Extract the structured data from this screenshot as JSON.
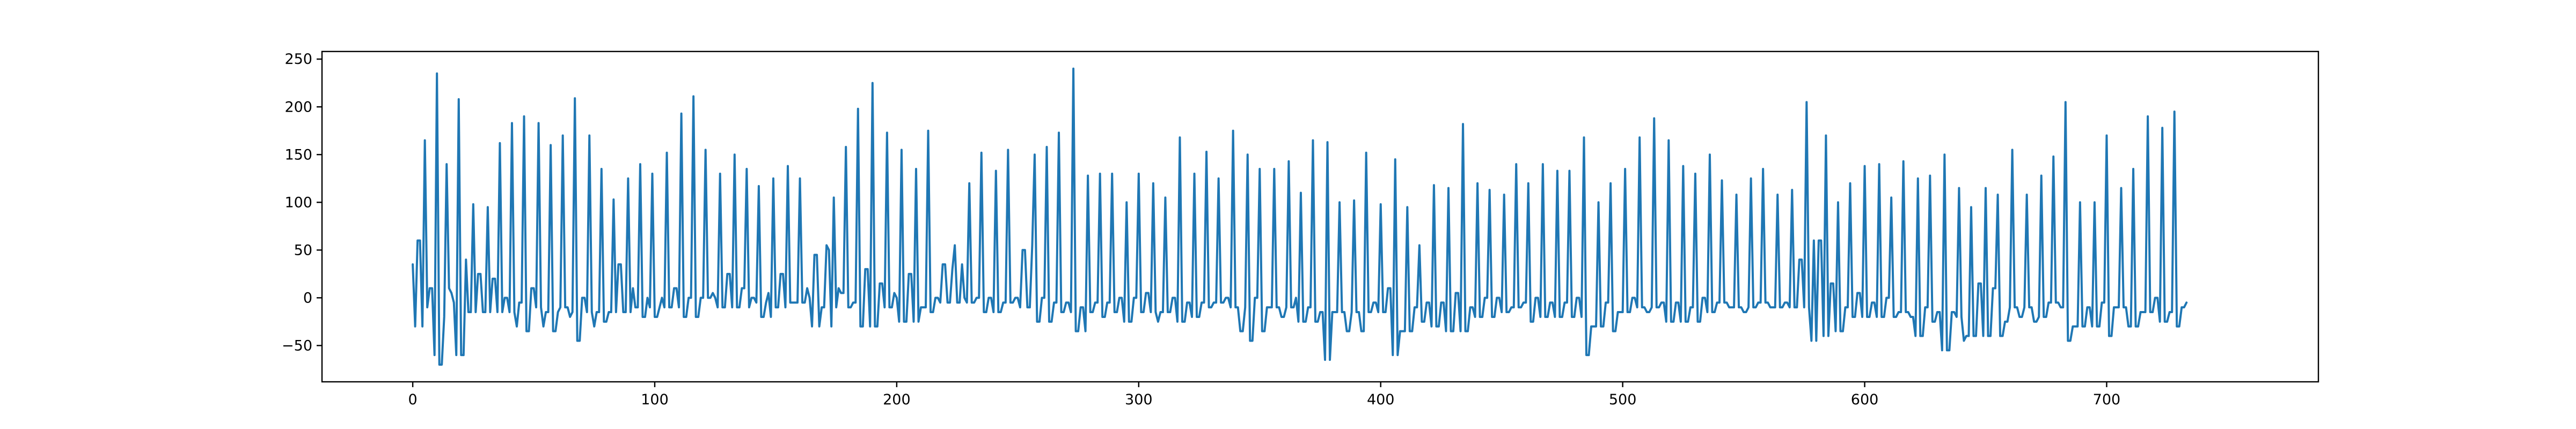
{
  "chart_data": {
    "type": "line",
    "title": "",
    "xlabel": "",
    "ylabel": "",
    "xlim": [
      -37.5,
      787.5
    ],
    "ylim": [
      -88,
      258
    ],
    "x_ticks": [
      0,
      100,
      200,
      300,
      400,
      500,
      600,
      700
    ],
    "x_tick_labels": [
      "0",
      "100",
      "200",
      "300",
      "400",
      "500",
      "600",
      "700"
    ],
    "y_ticks": [
      -50,
      0,
      50,
      100,
      150,
      200,
      250
    ],
    "y_tick_labels": [
      "−50",
      "0",
      "50",
      "100",
      "150",
      "200",
      "250"
    ],
    "grid": false,
    "legend": "none",
    "colors": {
      "line": "#1f77b4",
      "axes": "#000000",
      "background": "#ffffff"
    },
    "series": [
      {
        "x_start": 0,
        "x_step": 1,
        "values": [
          35,
          -30,
          60,
          60,
          -30,
          165,
          -10,
          10,
          10,
          -60,
          235,
          -70,
          -70,
          -20,
          140,
          10,
          5,
          -5,
          -60,
          208,
          -60,
          -60,
          40,
          -15,
          -15,
          98,
          -15,
          25,
          25,
          -15,
          -15,
          95,
          -15,
          20,
          20,
          -15,
          162,
          -15,
          0,
          0,
          -15,
          183,
          -15,
          -30,
          -5,
          -5,
          190,
          -35,
          -35,
          10,
          10,
          -10,
          183,
          -10,
          -30,
          -15,
          -15,
          160,
          -35,
          -35,
          -15,
          -10,
          170,
          -10,
          -10,
          -20,
          -15,
          209,
          -45,
          -45,
          0,
          0,
          -15,
          170,
          -15,
          -30,
          -15,
          -15,
          135,
          -25,
          -25,
          -15,
          -15,
          103,
          -15,
          35,
          35,
          -15,
          -15,
          125,
          -15,
          10,
          -10,
          -10,
          140,
          -20,
          -20,
          0,
          -10,
          130,
          -20,
          -20,
          -10,
          0,
          -10,
          152,
          -10,
          -10,
          10,
          10,
          -10,
          193,
          -20,
          -20,
          0,
          0,
          211,
          -20,
          -20,
          0,
          0,
          155,
          0,
          0,
          5,
          0,
          -10,
          130,
          -10,
          -10,
          25,
          25,
          -10,
          150,
          -10,
          -10,
          10,
          10,
          135,
          -10,
          0,
          0,
          -5,
          117,
          -20,
          -20,
          -5,
          5,
          -20,
          125,
          -10,
          -10,
          25,
          25,
          -10,
          138,
          -5,
          -5,
          -5,
          -5,
          125,
          -5,
          -5,
          10,
          0,
          -30,
          45,
          45,
          -30,
          -10,
          -10,
          55,
          50,
          -30,
          105,
          -10,
          10,
          5,
          5,
          158,
          -10,
          -10,
          -5,
          -5,
          198,
          -30,
          -30,
          30,
          30,
          -30,
          225,
          -30,
          -30,
          15,
          15,
          -10,
          173,
          -10,
          -10,
          5,
          0,
          -25,
          155,
          -25,
          -25,
          25,
          25,
          -25,
          135,
          -25,
          -10,
          -10,
          -10,
          175,
          -15,
          -15,
          0,
          0,
          -5,
          35,
          35,
          -5,
          -5,
          30,
          55,
          -5,
          -5,
          35,
          0,
          -5,
          120,
          -5,
          -5,
          0,
          0,
          152,
          -15,
          -15,
          0,
          0,
          -15,
          133,
          -15,
          -15,
          -5,
          -5,
          155,
          -5,
          -5,
          0,
          0,
          -10,
          50,
          50,
          -10,
          -10,
          55,
          150,
          -25,
          -25,
          0,
          0,
          158,
          -25,
          -25,
          -5,
          -5,
          173,
          -15,
          -15,
          -5,
          -5,
          -15,
          240,
          -35,
          -35,
          -10,
          -10,
          -35,
          128,
          -15,
          -15,
          -5,
          -5,
          130,
          -20,
          -20,
          -5,
          -5,
          130,
          -15,
          -15,
          0,
          0,
          -25,
          100,
          -25,
          -25,
          0,
          0,
          130,
          -15,
          -15,
          5,
          5,
          -15,
          120,
          -15,
          -25,
          -15,
          -15,
          105,
          -15,
          -15,
          0,
          0,
          -25,
          168,
          -25,
          -25,
          -5,
          -5,
          -20,
          130,
          -20,
          -20,
          -5,
          -5,
          153,
          -10,
          -10,
          -5,
          -5,
          125,
          -5,
          -5,
          0,
          0,
          -10,
          175,
          -10,
          -10,
          -35,
          -35,
          -10,
          150,
          -45,
          -45,
          0,
          0,
          135,
          -35,
          -35,
          -10,
          -10,
          -10,
          135,
          -10,
          -10,
          -20,
          -20,
          -10,
          143,
          -10,
          -10,
          0,
          -25,
          110,
          -25,
          -25,
          -10,
          -10,
          165,
          -25,
          -25,
          -15,
          -15,
          -65,
          163,
          -65,
          -15,
          -15,
          -15,
          100,
          -15,
          -15,
          -35,
          -35,
          -15,
          102,
          -15,
          -15,
          -35,
          -35,
          152,
          -15,
          -15,
          -5,
          -5,
          -15,
          98,
          -15,
          -15,
          10,
          10,
          -60,
          145,
          -60,
          -35,
          -35,
          -35,
          95,
          -35,
          -35,
          -10,
          -10,
          55,
          -25,
          -25,
          -5,
          -5,
          -30,
          118,
          -30,
          -30,
          -5,
          -5,
          -35,
          115,
          -35,
          -35,
          5,
          5,
          -35,
          182,
          -35,
          -35,
          -10,
          -10,
          -20,
          120,
          -20,
          -20,
          0,
          0,
          113,
          -20,
          -20,
          0,
          0,
          -15,
          108,
          -15,
          -15,
          -10,
          -10,
          140,
          -10,
          -10,
          -5,
          -5,
          120,
          -25,
          -25,
          0,
          0,
          -20,
          140,
          -20,
          -20,
          -5,
          -5,
          -20,
          133,
          -20,
          -20,
          -5,
          -5,
          133,
          -20,
          -20,
          0,
          0,
          -20,
          168,
          -60,
          -60,
          -30,
          -30,
          -30,
          100,
          -30,
          -30,
          -5,
          -5,
          120,
          -35,
          -35,
          -15,
          -15,
          -15,
          135,
          -15,
          -15,
          0,
          0,
          -10,
          168,
          -10,
          -10,
          -15,
          -15,
          -10,
          188,
          -10,
          -10,
          -5,
          -5,
          -25,
          165,
          -25,
          -25,
          -5,
          -5,
          -25,
          138,
          -25,
          -25,
          -10,
          -10,
          130,
          -25,
          -25,
          0,
          0,
          -15,
          150,
          -15,
          -15,
          -5,
          -5,
          123,
          -5,
          -5,
          -10,
          -10,
          -10,
          108,
          -10,
          -10,
          -15,
          -15,
          -10,
          125,
          -10,
          -10,
          -5,
          -5,
          135,
          -5,
          -5,
          -10,
          -10,
          -10,
          108,
          -10,
          -10,
          -5,
          -5,
          -10,
          113,
          -10,
          -10,
          40,
          40,
          -10,
          205,
          -10,
          -45,
          60,
          -45,
          60,
          60,
          -40,
          170,
          -40,
          15,
          15,
          -35,
          100,
          -35,
          -35,
          -10,
          -10,
          120,
          -20,
          -20,
          5,
          5,
          -20,
          138,
          -20,
          -20,
          -5,
          -5,
          -20,
          140,
          -20,
          -20,
          0,
          0,
          105,
          -20,
          -20,
          -15,
          -15,
          143,
          -15,
          -15,
          -20,
          -20,
          -40,
          125,
          -40,
          -40,
          -10,
          -10,
          128,
          -25,
          -25,
          -15,
          -15,
          -55,
          150,
          -55,
          -55,
          -15,
          -15,
          -20,
          115,
          -20,
          -45,
          -40,
          -40,
          95,
          -40,
          -40,
          15,
          15,
          -40,
          115,
          -40,
          -40,
          10,
          10,
          108,
          -40,
          -40,
          -25,
          -25,
          -10,
          155,
          -10,
          -10,
          -20,
          -20,
          -10,
          108,
          -10,
          -10,
          -25,
          -25,
          -20,
          128,
          -20,
          -20,
          -5,
          -5,
          148,
          -5,
          -5,
          -10,
          -10,
          205,
          -45,
          -45,
          -30,
          -30,
          -30,
          100,
          -30,
          -30,
          -10,
          -10,
          -30,
          100,
          -30,
          -30,
          -5,
          -5,
          170,
          -40,
          -40,
          -10,
          -10,
          -10,
          115,
          -10,
          -10,
          -30,
          -30,
          135,
          -30,
          -30,
          -15,
          -15,
          -15,
          190,
          -15,
          -15,
          0,
          0,
          -25,
          178,
          -25,
          -25,
          -15,
          -15,
          195,
          -30,
          -30,
          -10,
          -10,
          -5
        ]
      }
    ]
  }
}
